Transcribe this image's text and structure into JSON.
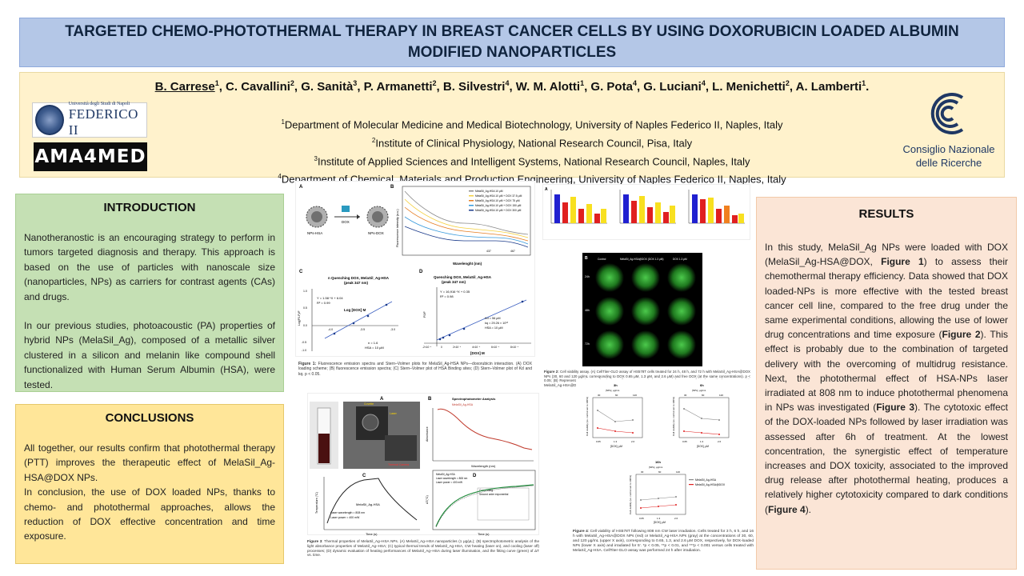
{
  "title": "TARGETED CHEMO-PHOTOTHERMAL THERAPY IN BREAST CANCER CELLS BY USING DOXORUBICIN LOADED ALBUMIN MODIFIED NANOPARTICLES",
  "authors": [
    {
      "name": "B. Carrese",
      "sup": "1"
    },
    {
      "name": "C. Cavallini",
      "sup": "2"
    },
    {
      "name": "G. Sanità",
      "sup": "3"
    },
    {
      "name": "P. Armanetti",
      "sup": "2"
    },
    {
      "name": "B. Silvestri",
      "sup": "4"
    },
    {
      "name": "W. M. Alotti",
      "sup": "1"
    },
    {
      "name": "G. Pota",
      "sup": "4"
    },
    {
      "name": "G. Luciani",
      "sup": "4"
    },
    {
      "name": "L. Menichetti",
      "sup": "2"
    },
    {
      "name": "A. Lamberti",
      "sup": "1"
    }
  ],
  "affiliations": [
    {
      "sup": "1",
      "text": "Department of Molecular Medicine and Medical Biotechnology, University of Naples Federico II, Naples, Italy"
    },
    {
      "sup": "2",
      "text": "Institute of Clinical Physiology, National Research Council, Pisa, Italy"
    },
    {
      "sup": "3",
      "text": "Institute of Applied Sciences and Intelligent Systems, National Research Council, Naples, Italy"
    },
    {
      "sup": "4",
      "text": "Department of Chemical, Materials and Production  Engineering, University of Naples Federico II,  Naples, Italy"
    }
  ],
  "logos": {
    "federico_small": "Università degli Studi di Napoli",
    "federico_big": "FEDERICO II",
    "ama": "AMA4MED",
    "cnr_line1": "Consiglio Nazionale",
    "cnr_line2": "delle Ricerche"
  },
  "introduction": {
    "heading": "INTRODUCTION",
    "p1": "Nanotheranostic is an encouraging strategy to perform in tumors targeted diagnosis and therapy. This approach is based on the use of particles with nanoscale size (nanoparticles, NPs) as carriers for contrast agents (CAs) and drugs.",
    "p2": "In our previous studies, photoacoustic (PA) properties of hybrid NPs (MelaSil_Ag), composed of a metallic silver clustered in a silicon and melanin like compound shell functionalized with Human Serum Albumin (HSA), were tested."
  },
  "conclusions": {
    "heading": "CONCLUSIONS",
    "p1": "All together, our results confirm that photothermal therapy (PTT) improves the therapeutic effect of MelaSil_Ag-HSA@DOX NPs.",
    "p2": "In conclusion, the use of DOX loaded NPs, thanks to chemo- and photothermal approaches, allows the reduction of DOX effective concentration and time exposure."
  },
  "results": {
    "heading": "RESULTS",
    "s1": "In this study, MelaSil_Ag NPs were loaded with DOX (MelaSil_Ag-HSA@DOX, ",
    "r1": "Figure 1",
    "s2": ") to assess their chemothermal therapy efficiency. Data showed that DOX loaded-NPs is more effective with the tested breast cancer cell line, compared to the free drug under the same experimental conditions, allowing the use of lower drug concentrations and time exposure (",
    "r2": "Figure 2",
    "s3": "). This effect is probably due to the combination of targeted delivery with the overcoming of multidrug resistance. Next, the photothermal effect of HSA-NPs laser irradiated at 808 nm to induce photothermal phenomena in NPs was investigated (",
    "r3": "Figure 3",
    "s4": "). The cytotoxic effect of the DOX-loaded NPs followed by laser irradiation was assessed after 6h of treatment. At the lowest concentration, the synergistic effect of temperature increases and DOX toxicity, associated to the improved drug release after photothermal heating, produces a relatively higher cytotoxicity compared to dark conditions (",
    "r4": "Figure 4",
    "s5": ")."
  },
  "fig1": {
    "label_a": "A",
    "label_b": "B",
    "label_c": "C",
    "label_d": "D",
    "dox": "DOX",
    "nps_hsa": "NPs-HSA",
    "nps_dox": "NPs-DOX",
    "legend": [
      "MelaSil_Ag-HSA 10 μM",
      "MelaSil_Ag-HSA 10 μM + DOX 37.5 μM",
      "MelaSil_Ag-HSA 10 μM + DOX 75 μM",
      "MelaSil_Ag-HSA 10 μM + DOX 150 μM",
      "MelaSil_Ag-HSA 10 μM + DOX 300 μM"
    ],
    "b_xlabel": "Wavelenght (nm)",
    "b_ylabel": "Fluorescence intensity (a.u.)",
    "b_peaks": [
      "437",
      "467"
    ],
    "c_title": "n Quenching DOX, MelaSil_Ag-HSA",
    "c_sub": "(peak 347 nm)",
    "c_eq": "Y = 1.58 *X + 6.04",
    "c_r2": "R² = 0.99",
    "c_xlabel": "Log [DOX] M",
    "c_ylabel": "Log(F0-F)/F",
    "c_note1": "n = 1.6",
    "c_note2": "HSA = 10 μM",
    "c_xticks": [
      "-4.0",
      "-3.5",
      "-3.0"
    ],
    "c_yticks": [
      "1.0",
      "0.5",
      "0.0",
      "-0.5",
      "-1.0"
    ],
    "d_title": "Quenching DOX, MelaSil_Ag-HSA",
    "d_sub": "(peak 347 nm)",
    "d_eq": "Y = 16,916 *X + 0.35",
    "d_r2": "R² = 0.98",
    "d_xlabel": "[DOX] M",
    "d_ylabel": "F0/F",
    "d_note1": "Kd = 56 μM",
    "d_note2": "kq = 29.26 × 10¹³",
    "d_note3": "HSA = 10 μM",
    "d_xticks": [
      "-2×10⁻⁴",
      "0",
      "2×10⁻⁴",
      "4×10⁻⁴",
      "6×10⁻⁴",
      "8×10⁻⁴"
    ],
    "caption_b": "Figure 1:",
    "caption": " Fluorescence emission spectra and Stern–Volmer plots for MelaSil_Ag-HSA NPs—doxorubicin interaction. (A) DOX loading scheme; (B) fluorescence emission spectra; (C) Stern–Volmer plot of HSA Binding sites; (D) Stern–Volmer plot of Kd and kq. p < 0.05."
  },
  "fig2": {
    "label_a": "A",
    "label_b": "B",
    "col_labels": [
      "Control",
      "MelaSil_Ag-HSA@DOX (DOX 1.3 μM)",
      "DOX 1.3 μM"
    ],
    "row_labels": [
      "24h",
      "48h",
      "72h"
    ],
    "caption_b": "Figure 2:",
    "caption": " Cell viability assay. (A) CellTiter-GLO assay of HS578T cells treated for 24 h, 48 h, and 72 h with MelaSil_Ag-HSA@DOX NPs (30, 60 and 120 μg/mL corresponding to DOX 0.65 μM, 1.3 μM, and 2.6 μM) and free DOX (at the same concentrations). p < 0.05; (B) Representative images of Calcein-AM fluorescent morphology images of HS578T cells before and after treatment with MelaSil_Ag-HSA@DOX NPs and free DOX. Scale bar 1000 μm."
  },
  "fig3": {
    "label_a": "A",
    "label_b": "B",
    "label_c": "C",
    "label_d": "D",
    "setup_labels": [
      "Cuvette",
      "Laser",
      "Thermal Camera"
    ],
    "b_title": "Spectrophotometer Analysis",
    "b_legend": "MelaSil_Ag-HSA",
    "b_ylabel": "Absorbance",
    "b_xlabel": "Wavelength (nm)",
    "c_legend": "MelaSil_Ag-HSA",
    "c_params": [
      "Laser wavelength = 808 nm",
      "Laser power = 400 mW"
    ],
    "c_ylabel": "Temperature (°C)",
    "c_xlabel": "Time (s)",
    "d_legend": [
      "MelaSil_Ag-HSA",
      "Laser wavelength = 808 nm",
      "Laser power = 400 mW"
    ],
    "d_fit_title": "Curve fitting",
    "d_fit_sub": "Second order exponential",
    "d_ylabel": "ΔT(°C)",
    "d_xlabel": "Time (s)",
    "caption_b": "Figure 3",
    "caption": ": Thermal properties of MelaSil_Ag–HSA NPs. (A) MelaSil_Ag–HSA nanoparticles (1 μg/μL); (B) spectrophotometric analysis of the light absorbance properties of MelaSil_Ag–HSA; (C) typical thermal trends of MelaSil_Ag-HSA, CW heating (laser on), and cooling (laser off) processes; (D) dynamic evaluation of heating performances of MelaSil_Ag–HSA during laser illumination, and the fitting curve (green) of ΔT vs. time."
  },
  "fig4": {
    "titles": [
      "3h",
      "6h",
      "16h"
    ],
    "top_axis": "[NPs], μg/mL",
    "top_ticks": [
      "30",
      "60",
      "120"
    ],
    "xlabel": "[DOX], μM",
    "x_ticks": [
      "0.65",
      "1.3",
      "2.6"
    ],
    "ylabel": "Cell viability (vs. control set to 100%)",
    "legend": [
      "MelaSil_Ag-HSA",
      "MelaSil_Ag-HSA@DOX"
    ],
    "caption_b": "Figure 4",
    "caption": ":   Cell viability of HS578T following 808 nm CW laser irradiation. Cells treated for 3 h, 6 h, and 16 h with MelaSil_Ag-HSA@DOX NPs (red) or MelaSil_Ag-HSA NPs (gray) at the concentrations of 30, 60, and 120 μg/mL (upper X axis), corresponding to 0.65, 1.3, and 2.6 μM DOX, respectively, for DOX-loaded NPs (lower X axis) and irradiated for 5'. *p < 0.05, **p < 0.01, and ***p < 0.001 versus cells treated with MelaSil_Ag-HSA. CellTiter-GLO assay was performed 24 h after irradiation."
  },
  "colors": {
    "title_bg": "#b4c7e7",
    "authors_bg": "#fff2cc",
    "intro_bg": "#c5e0b4",
    "concl_bg": "#ffe699",
    "results_bg": "#fbe5d6",
    "bar_blue": "#2020d0",
    "bar_red": "#e02020",
    "bar_orange": "#f08020",
    "bar_yellow": "#f8e020"
  }
}
